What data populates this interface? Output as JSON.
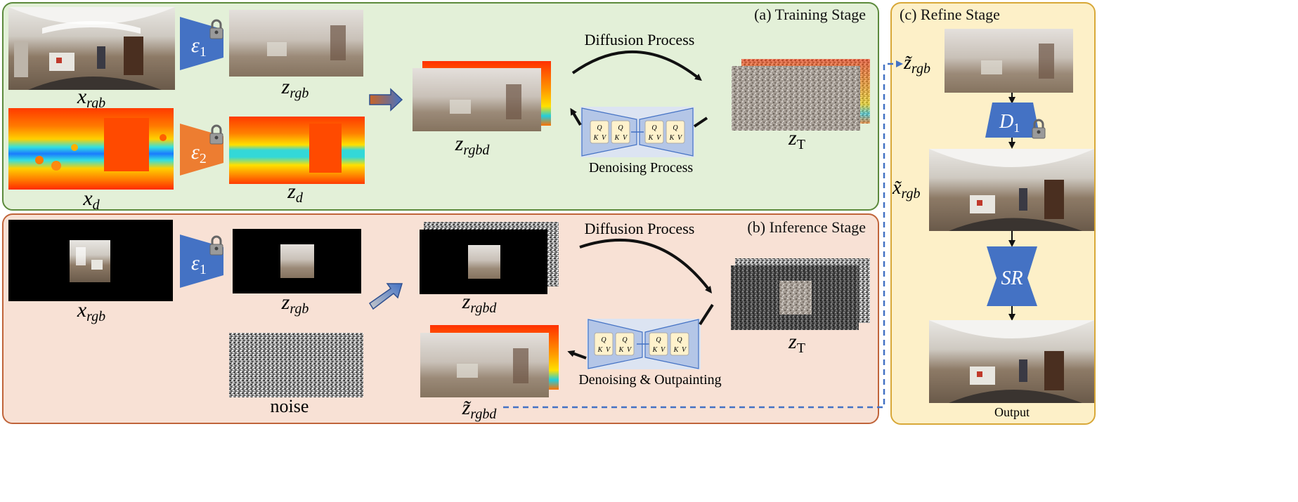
{
  "training": {
    "title": "(a) Training Stage",
    "encoder_rgb": "ε",
    "encoder_rgb_sub": "1",
    "encoder_depth": "ε",
    "encoder_depth_sub": "2",
    "x_rgb_label": "x",
    "x_rgb_sub": "rgb",
    "z_rgb_label": "z",
    "z_rgb_sub": "rgb",
    "x_d_label": "x",
    "x_d_sub": "d",
    "z_d_label": "z",
    "z_d_sub": "d",
    "z_rgbd_label": "z",
    "z_rgbd_sub": "rgbd",
    "z_T_label": "z",
    "z_T_sub": "T",
    "diffusion_label": "Diffusion Process",
    "denoising_label": "Denoising Process"
  },
  "inference": {
    "title": "(b) Inference Stage",
    "encoder_rgb": "ε",
    "encoder_rgb_sub": "1",
    "x_rgb_label": "x",
    "x_rgb_sub": "rgb",
    "z_rgb_label": "z",
    "z_rgb_sub": "rgb",
    "noise_label": "noise",
    "z_rgbd_label": "z",
    "z_rgbd_sub": "rgbd",
    "z_T_label": "z",
    "z_T_sub": "T",
    "zt_rgbd_label": "z̃",
    "zt_rgbd_sub": "rgbd",
    "diffusion_label": "Diffusion Process",
    "denoising_label": "Denoising & Outpainting"
  },
  "refine": {
    "title": "(c) Refine Stage",
    "input_label": "z̃",
    "input_sub": "rgb",
    "decoder": "D",
    "decoder_sub": "1",
    "xt_label": "x̃",
    "xt_sub": "rgb",
    "sr_label": "SR",
    "output_label": "Output"
  },
  "unet": {
    "q": "Q",
    "k": "K",
    "v": "V"
  },
  "colors": {
    "training_bg": "#e3f0d8",
    "training_border": "#5c8a3c",
    "inference_bg": "#f8e1d5",
    "inference_border": "#c0643a",
    "refine_bg": "#fdf0c8",
    "refine_border": "#d8a838",
    "encoder_blue": "#4472c4",
    "encoder_orange": "#ed7d31",
    "unet_fill": "#b4c6e7",
    "dashed_link": "#4472c4"
  }
}
